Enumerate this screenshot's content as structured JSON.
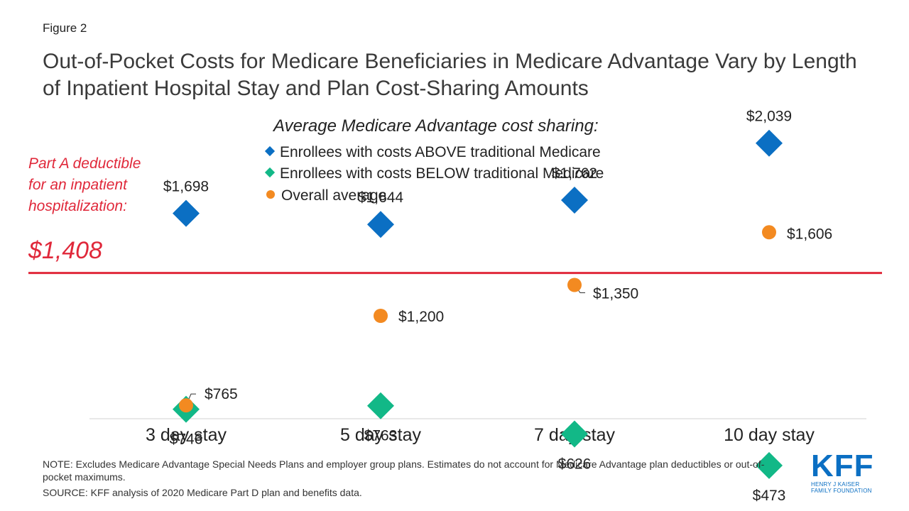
{
  "figure_label": "Figure 2",
  "title": "Out-of-Pocket Costs for Medicare Beneficiaries in Medicare Advantage Vary by Length of Inpatient Hospital Stay and Plan Cost-Sharing Amounts",
  "legend": {
    "title": "Average Medicare Advantage cost sharing:",
    "above": "Enrollees with costs ABOVE traditional Medicare",
    "below": "Enrollees with costs BELOW traditional Medicare",
    "average": "Overall average"
  },
  "part_a": {
    "label": "Part A deductible for an inpatient hospitalization:",
    "value": "$1,408"
  },
  "note": "NOTE: Excludes Medicare Advantage Special Needs Plans and employer group plans. Estimates do not account for Medicare Advantage plan deductibles or out-of-pocket maximums.",
  "source": "SOURCE: KFF analysis of 2020 Medicare Part D plan and benefits data.",
  "logo": {
    "mark": "KFF",
    "line1": "HENRY J KAISER",
    "line2": "FAMILY FOUNDATION"
  },
  "colors": {
    "above": "#0b6fc3",
    "below": "#12b887",
    "average": "#f38a21",
    "reference": "#e0283a"
  },
  "chart_data": {
    "type": "scatter",
    "categories": [
      "3 day stay",
      "5 day stay",
      "7 day stay",
      "10 day stay"
    ],
    "series": [
      {
        "name": "Enrollees with costs ABOVE traditional Medicare",
        "marker": "diamond",
        "values": [
          1698,
          1644,
          1762,
          2039
        ],
        "labels": [
          "$1,698",
          "$1,644",
          "$1,762",
          "$2,039"
        ]
      },
      {
        "name": "Enrollees with costs BELOW traditional Medicare",
        "marker": "diamond",
        "values": [
          746,
          763,
          626,
          473
        ],
        "labels": [
          "$746",
          "$763",
          "$626",
          "$473"
        ]
      },
      {
        "name": "Overall average",
        "marker": "circle",
        "values": [
          765,
          1200,
          1350,
          1606
        ],
        "labels": [
          "$765",
          "$1,200",
          "$1,350",
          "$1,606"
        ]
      }
    ],
    "reference_line": {
      "value": 1408,
      "label": "$1,408"
    },
    "ylim": [
      300,
      2300
    ],
    "xlabel": "",
    "ylabel": ""
  }
}
